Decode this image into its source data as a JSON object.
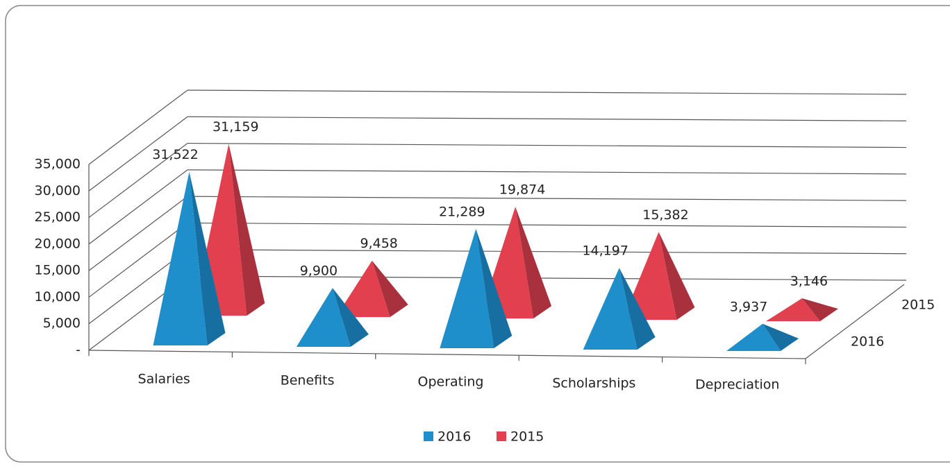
{
  "chart_data": {
    "type": "pyramid3d",
    "categories": [
      "Salaries",
      "Benefits",
      "Operating",
      "Scholarships",
      "Depreciation"
    ],
    "series": [
      {
        "name": "2016",
        "color": "#1e8fcb",
        "values": [
          31522,
          9900,
          21289,
          14197,
          3937
        ],
        "value_labels": [
          "31,522",
          "9,900",
          "21,289",
          "14,197",
          "3,937"
        ]
      },
      {
        "name": "2015",
        "color": "#e2404f",
        "values": [
          31159,
          9458,
          19874,
          15382,
          3146
        ],
        "value_labels": [
          "31,159",
          "9,458",
          "19,874",
          "15,382",
          "3,146"
        ]
      }
    ],
    "ylim": [
      0,
      35000
    ],
    "yticks": [
      {
        "value": 0,
        "label": "-"
      },
      {
        "value": 5000,
        "label": "5,000"
      },
      {
        "value": 10000,
        "label": "10,000"
      },
      {
        "value": 15000,
        "label": "15,000"
      },
      {
        "value": 20000,
        "label": "20,000"
      },
      {
        "value": 25000,
        "label": "25,000"
      },
      {
        "value": 30000,
        "label": "30,000"
      },
      {
        "value": 35000,
        "label": "35,000"
      }
    ],
    "grid": true
  }
}
